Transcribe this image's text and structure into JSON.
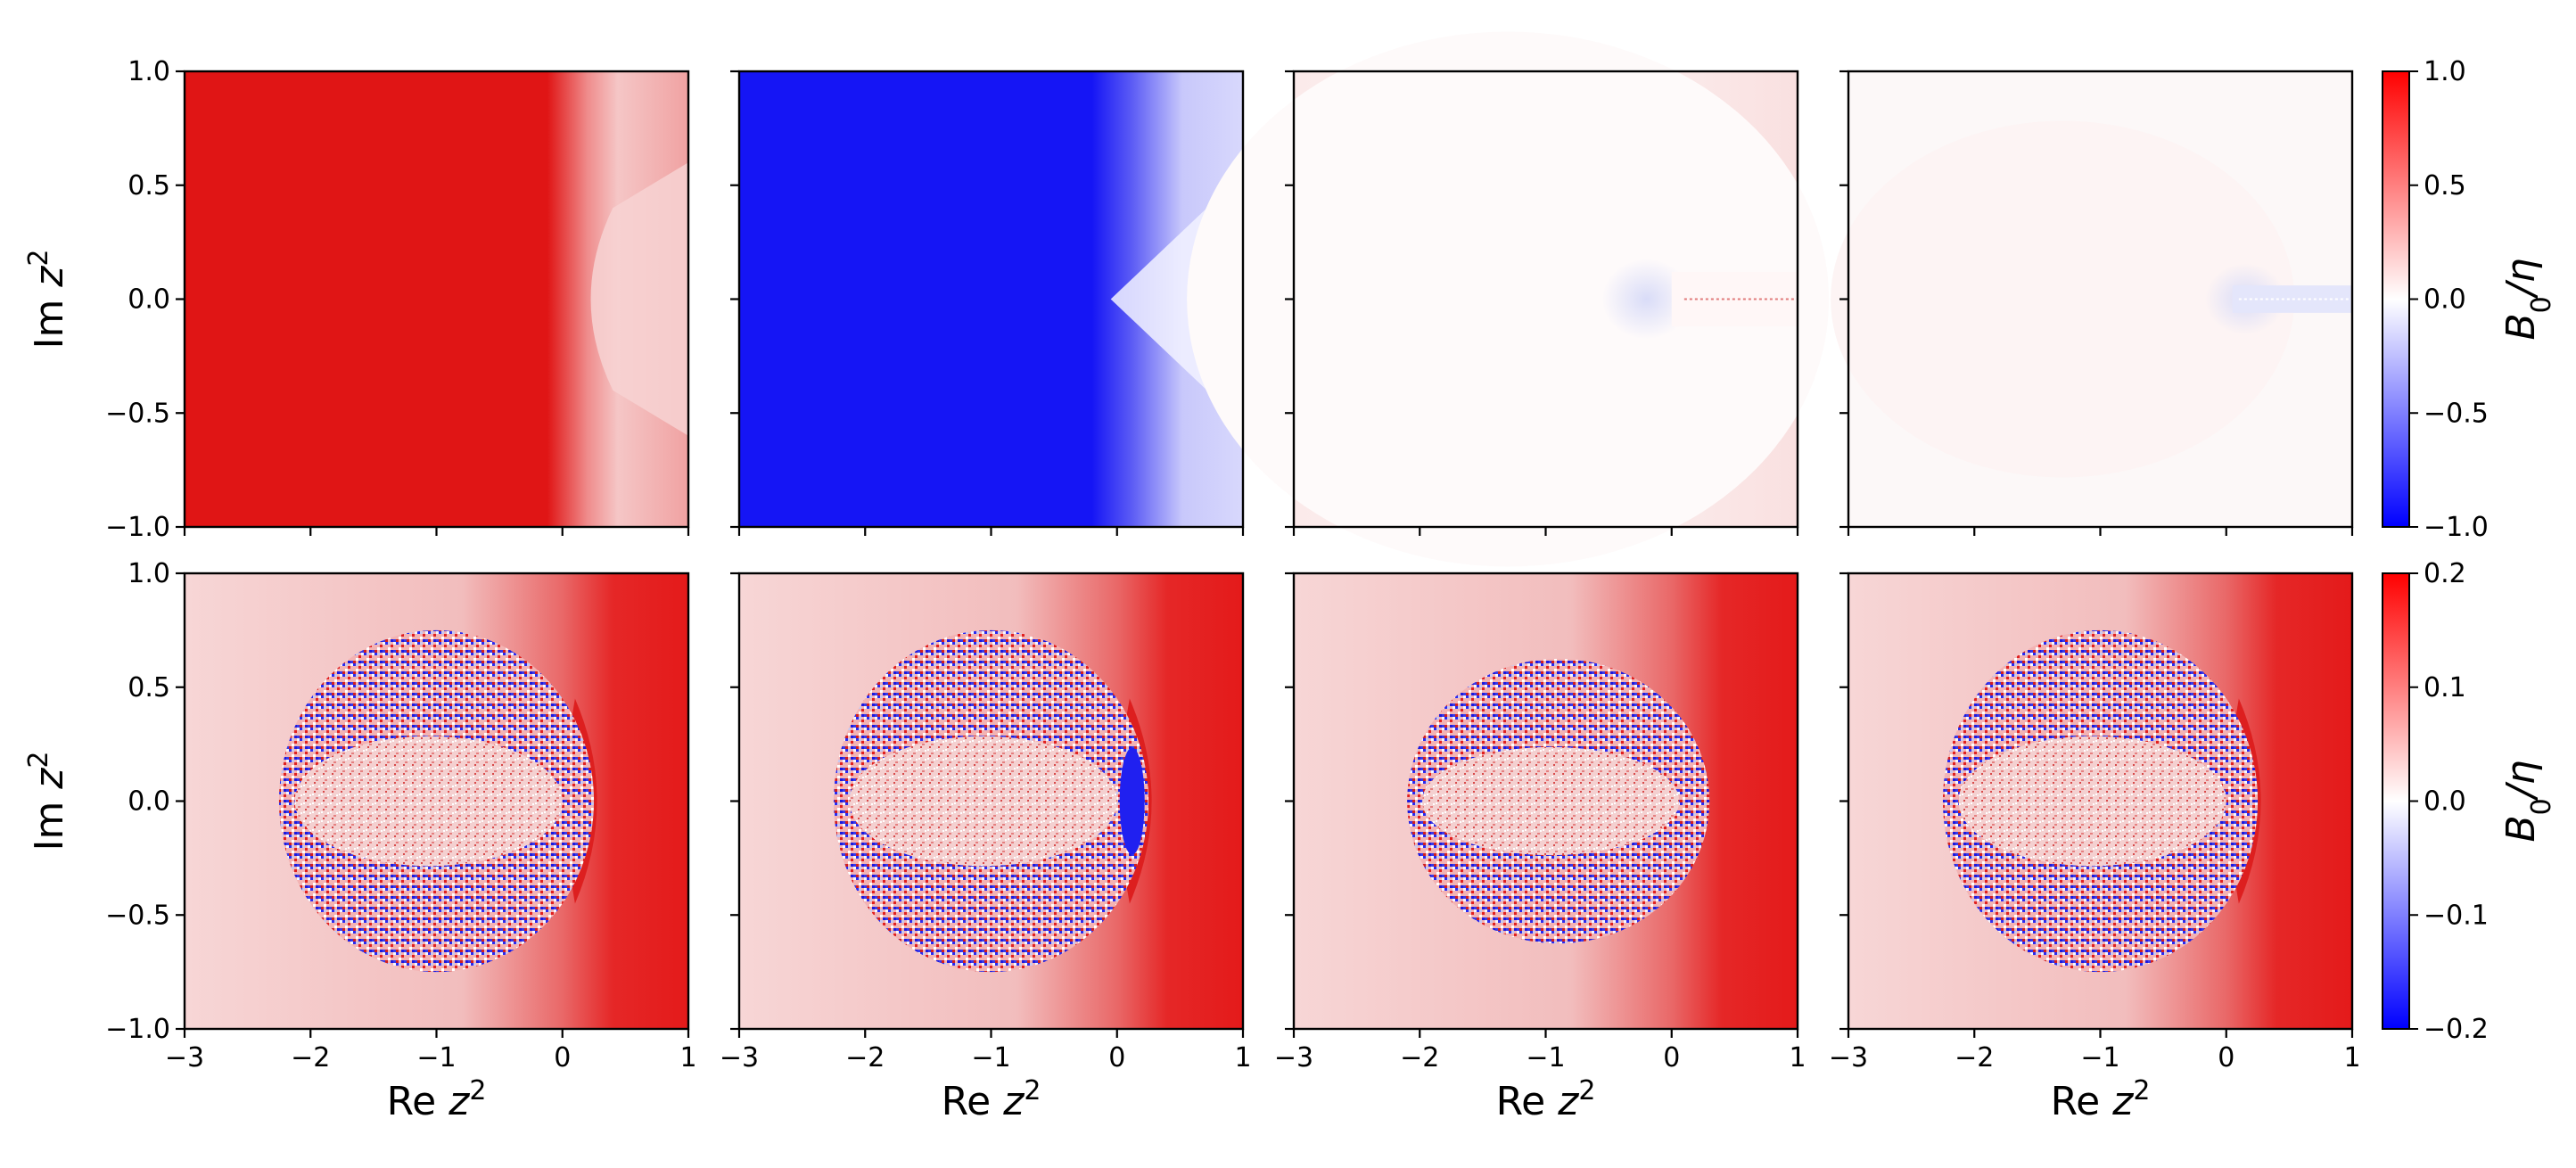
{
  "chart_data": {
    "type": "heatmap",
    "layout": {
      "rows": 2,
      "cols": 4
    },
    "colormap": {
      "low": "#0000ff",
      "mid": "#ffffff",
      "high": "#ff0000"
    },
    "x_axis": {
      "label": "Re z",
      "label_sup": "2",
      "range": [
        -3,
        1
      ],
      "ticks": [
        -3,
        -2,
        -1,
        0,
        1
      ],
      "tick_labels": [
        "−3",
        "−2",
        "−1",
        "0",
        "1"
      ]
    },
    "y_axis": {
      "label": "Im z",
      "label_sup": "2",
      "range": [
        -1,
        1
      ],
      "ticks": [
        1.0,
        0.5,
        0.0,
        -0.5,
        -1.0
      ],
      "tick_labels": [
        "1.0",
        "0.5",
        "0.0",
        "−0.5",
        "−1.0"
      ]
    },
    "rows": [
      {
        "colorbar": {
          "label_main": "B",
          "label_sub": "0",
          "label_tail": "/η",
          "range": [
            -1.0,
            1.0
          ],
          "ticks": [
            1.0,
            0.5,
            0.0,
            -0.5,
            -1.0
          ],
          "tick_labels": [
            "1.0",
            "0.5",
            "0.0",
            "−0.5",
            "−1.0"
          ]
        },
        "panels": [
          {
            "pattern": "red-fill-right-fade",
            "value_left": 1.0,
            "value_right": 0.3
          },
          {
            "pattern": "blue-fill-right-fade",
            "value_left": -1.0,
            "value_right": -0.1
          },
          {
            "pattern": "near-zero-pale-red",
            "value_left": 0.08,
            "value_right": 0.15
          },
          {
            "pattern": "near-zero-white",
            "value_left": 0.02,
            "value_right": -0.05
          }
        ]
      },
      {
        "colorbar": {
          "label_main": "B",
          "label_sub": "0",
          "label_tail": "/η",
          "range": [
            -0.2,
            0.2
          ],
          "ticks": [
            0.2,
            0.1,
            0.0,
            -0.1,
            -0.2
          ],
          "tick_labels": [
            "0.2",
            "0.1",
            "0.0",
            "−0.1",
            "−0.2"
          ]
        },
        "panels": [
          {
            "pattern": "noisy-disk",
            "disk_center": [
              -1.0,
              0.0
            ],
            "disk_radius": 1.25,
            "aspect": 0.6,
            "edge_blob_x": 0.1
          },
          {
            "pattern": "noisy-disk",
            "disk_center": [
              -1.0,
              0.0
            ],
            "disk_radius": 1.25,
            "aspect": 0.6,
            "edge_blob_x": 0.1
          },
          {
            "pattern": "noisy-disk",
            "disk_center": [
              -0.9,
              0.0
            ],
            "disk_radius": 1.2,
            "aspect": 0.5,
            "edge_blob_x": 0.05
          },
          {
            "pattern": "noisy-disk",
            "disk_center": [
              -1.0,
              0.0
            ],
            "disk_radius": 1.25,
            "aspect": 0.6,
            "edge_blob_x": 0.1
          }
        ]
      }
    ]
  }
}
